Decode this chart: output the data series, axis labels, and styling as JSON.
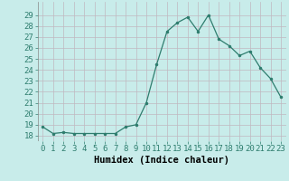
{
  "x": [
    0,
    1,
    2,
    3,
    4,
    5,
    6,
    7,
    8,
    9,
    10,
    11,
    12,
    13,
    14,
    15,
    16,
    17,
    18,
    19,
    20,
    21,
    22,
    23
  ],
  "y": [
    18.8,
    18.2,
    18.3,
    18.2,
    18.2,
    18.2,
    18.2,
    18.2,
    18.8,
    19.0,
    21.0,
    24.5,
    27.5,
    28.3,
    28.8,
    27.5,
    29.0,
    26.8,
    26.2,
    25.3,
    25.7,
    24.2,
    23.2,
    21.5
  ],
  "line_color": "#2e7d6e",
  "marker_color": "#2e7d6e",
  "bg_color": "#c8ecea",
  "grid_color": "#c0b8c0",
  "xlabel": "Humidex (Indice chaleur)",
  "ylim": [
    17.5,
    30.2
  ],
  "xlim": [
    -0.5,
    23.5
  ],
  "yticks": [
    18,
    19,
    20,
    21,
    22,
    23,
    24,
    25,
    26,
    27,
    28,
    29
  ],
  "xtick_labels": [
    "0",
    "1",
    "2",
    "3",
    "4",
    "5",
    "6",
    "7",
    "8",
    "9",
    "10",
    "11",
    "12",
    "13",
    "14",
    "15",
    "16",
    "17",
    "18",
    "19",
    "20",
    "21",
    "22",
    "23"
  ],
  "xlabel_fontsize": 7.5,
  "tick_fontsize": 6.5
}
